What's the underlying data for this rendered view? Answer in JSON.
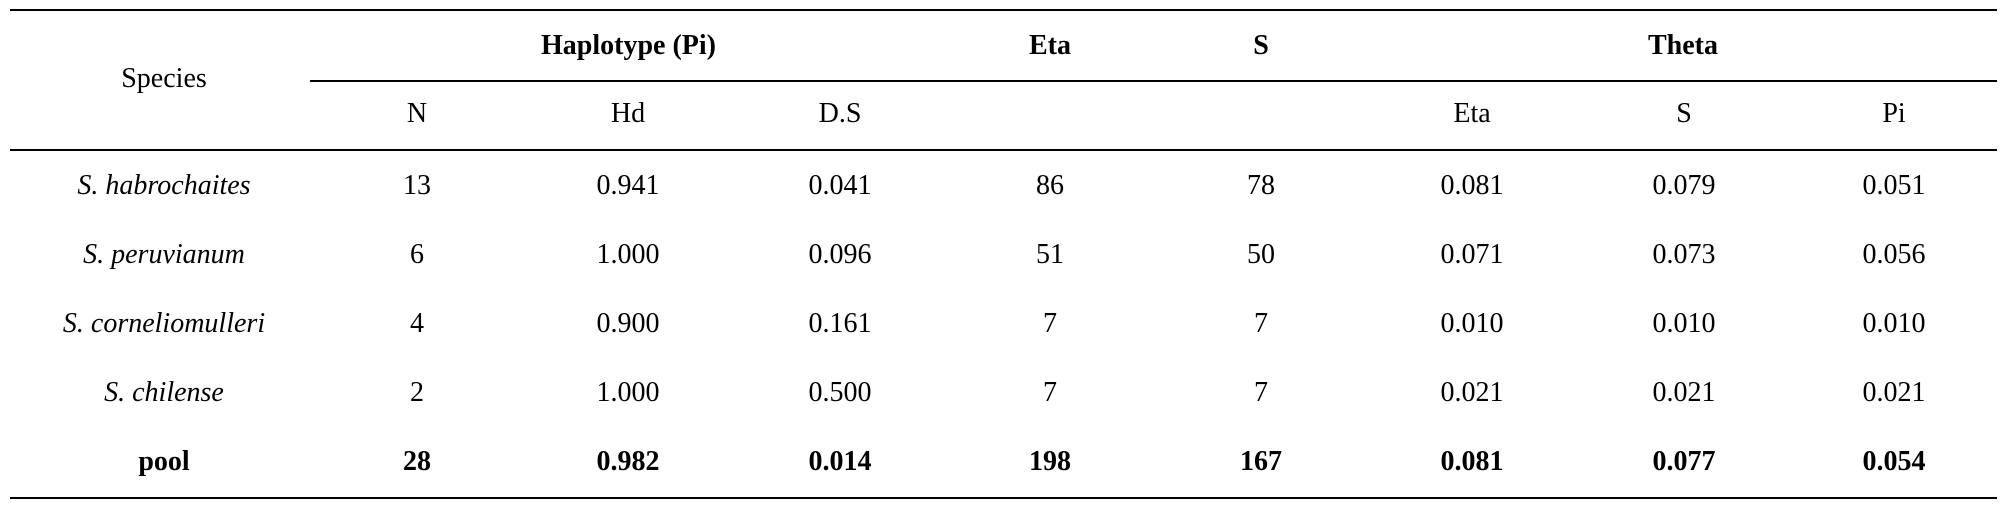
{
  "table": {
    "header": {
      "species": "Species",
      "groups": [
        {
          "label": "Haplotype (Pi)",
          "columns": [
            "N",
            "Hd",
            "D.S"
          ]
        },
        {
          "label": "Eta"
        },
        {
          "label": "S"
        },
        {
          "label": "Theta",
          "columns": [
            "Eta",
            "S",
            "Pi"
          ]
        }
      ]
    },
    "rows": [
      [
        "S. habrochaites",
        "13",
        "0.941",
        "0.041",
        "86",
        "78",
        "0.081",
        "0.079",
        "0.051"
      ],
      [
        "S. peruvianum",
        "6",
        "1.000",
        "0.096",
        "51",
        "50",
        "0.071",
        "0.073",
        "0.056"
      ],
      [
        "S. corneliomulleri",
        "4",
        "0.900",
        "0.161",
        "7",
        "7",
        "0.010",
        "0.010",
        "0.010"
      ],
      [
        "S. chilense",
        "2",
        "1.000",
        "0.500",
        "7",
        "7",
        "0.021",
        "0.021",
        "0.021"
      ],
      [
        "pool",
        "28",
        "0.982",
        "0.014",
        "198",
        "167",
        "0.081",
        "0.077",
        "0.054"
      ]
    ]
  }
}
